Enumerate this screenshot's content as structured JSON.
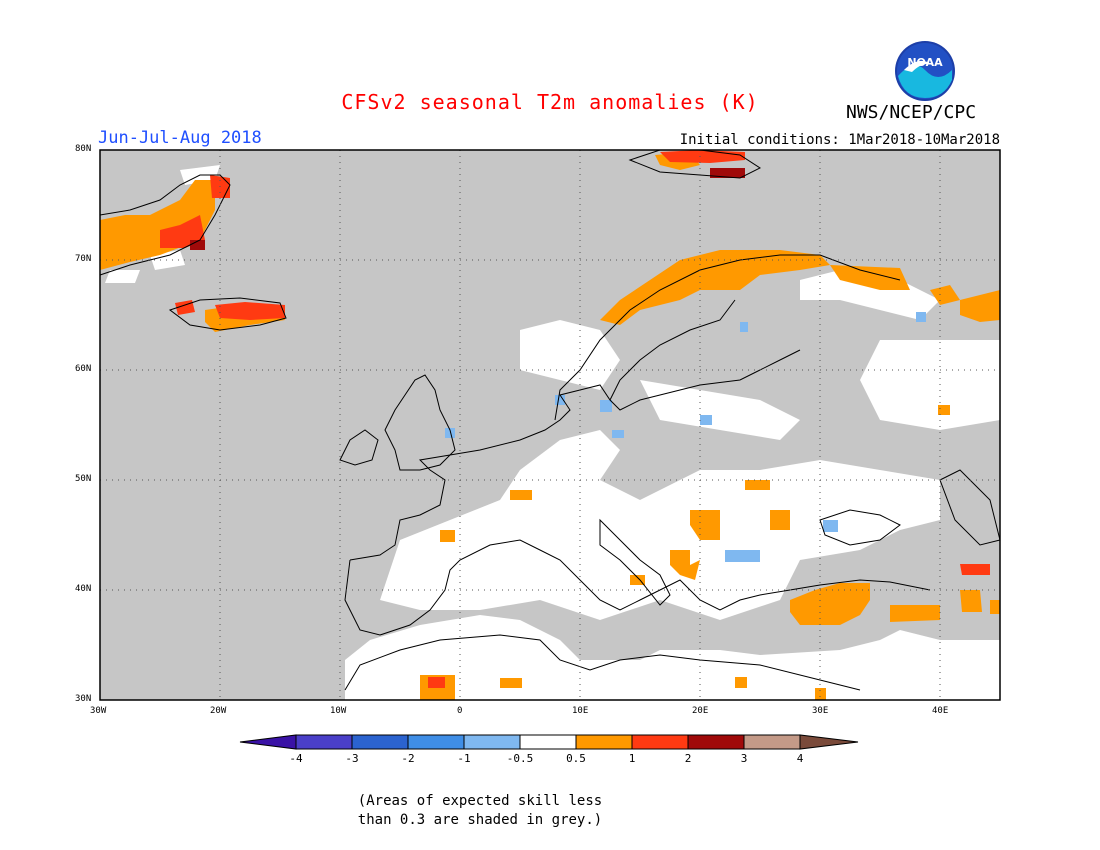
{
  "header": {
    "title": "CFSv2 seasonal T2m anomalies (K)",
    "period": "Jun-Jul-Aug 2018",
    "initial_conditions": "Initial conditions: 1Mar2018-10Mar2018",
    "agency": "NWS/NCEP/CPC",
    "logo_text": "NOAA"
  },
  "map": {
    "extent": {
      "lon": [
        -30,
        45
      ],
      "lat": [
        30,
        80
      ]
    },
    "lon_ticks": [
      "30W",
      "20W",
      "10W",
      "0",
      "10E",
      "20E",
      "30E",
      "40E"
    ],
    "lat_ticks": [
      "30N",
      "40N",
      "50N",
      "60N",
      "70N",
      "80N"
    ],
    "colors": {
      "grey_low_skill": "#c6c6c6",
      "neutral": "#ffffff",
      "land_outline": "#000000"
    }
  },
  "legend": {
    "labels": [
      "-4",
      "-3",
      "-2",
      "-1",
      "-0.5",
      "0.5",
      "1",
      "2",
      "3",
      "4"
    ],
    "colors": [
      "#3a12a6",
      "#4a3fc8",
      "#2b63cf",
      "#3f8ee6",
      "#7fb8f0",
      "#ffffff",
      "#ff9900",
      "#ff3a12",
      "#a00a0a",
      "#c49a88",
      "#7a4a3a"
    ]
  },
  "footnote": {
    "line1": "(Areas of expected skill less",
    "line2": "than 0.3 are shaded in grey.)"
  }
}
